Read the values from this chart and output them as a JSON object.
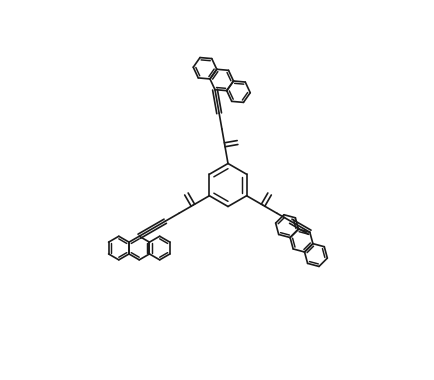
{
  "bg_color": "#ffffff",
  "line_color": "#1a1a1a",
  "lw": 1.2,
  "figsize": [
    4.34,
    3.8
  ],
  "dpi": 100
}
